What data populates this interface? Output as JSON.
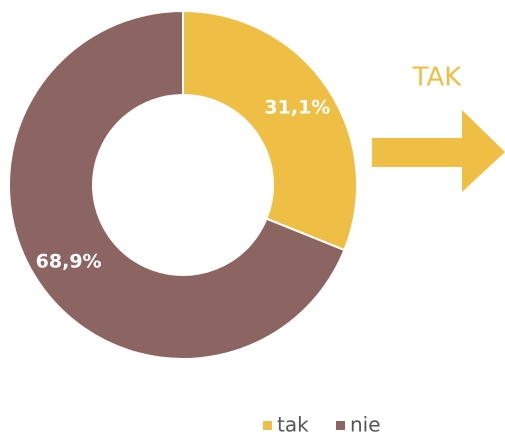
{
  "chart_data": {
    "type": "pie",
    "donut": true,
    "categories": [
      "tak",
      "nie"
    ],
    "values": [
      31.1,
      68.9
    ],
    "value_labels": [
      "31,1%",
      "68,9%"
    ],
    "colors": [
      "#efbf45",
      "#8c6461"
    ],
    "annotation": "TAK",
    "legend": "bottom"
  }
}
